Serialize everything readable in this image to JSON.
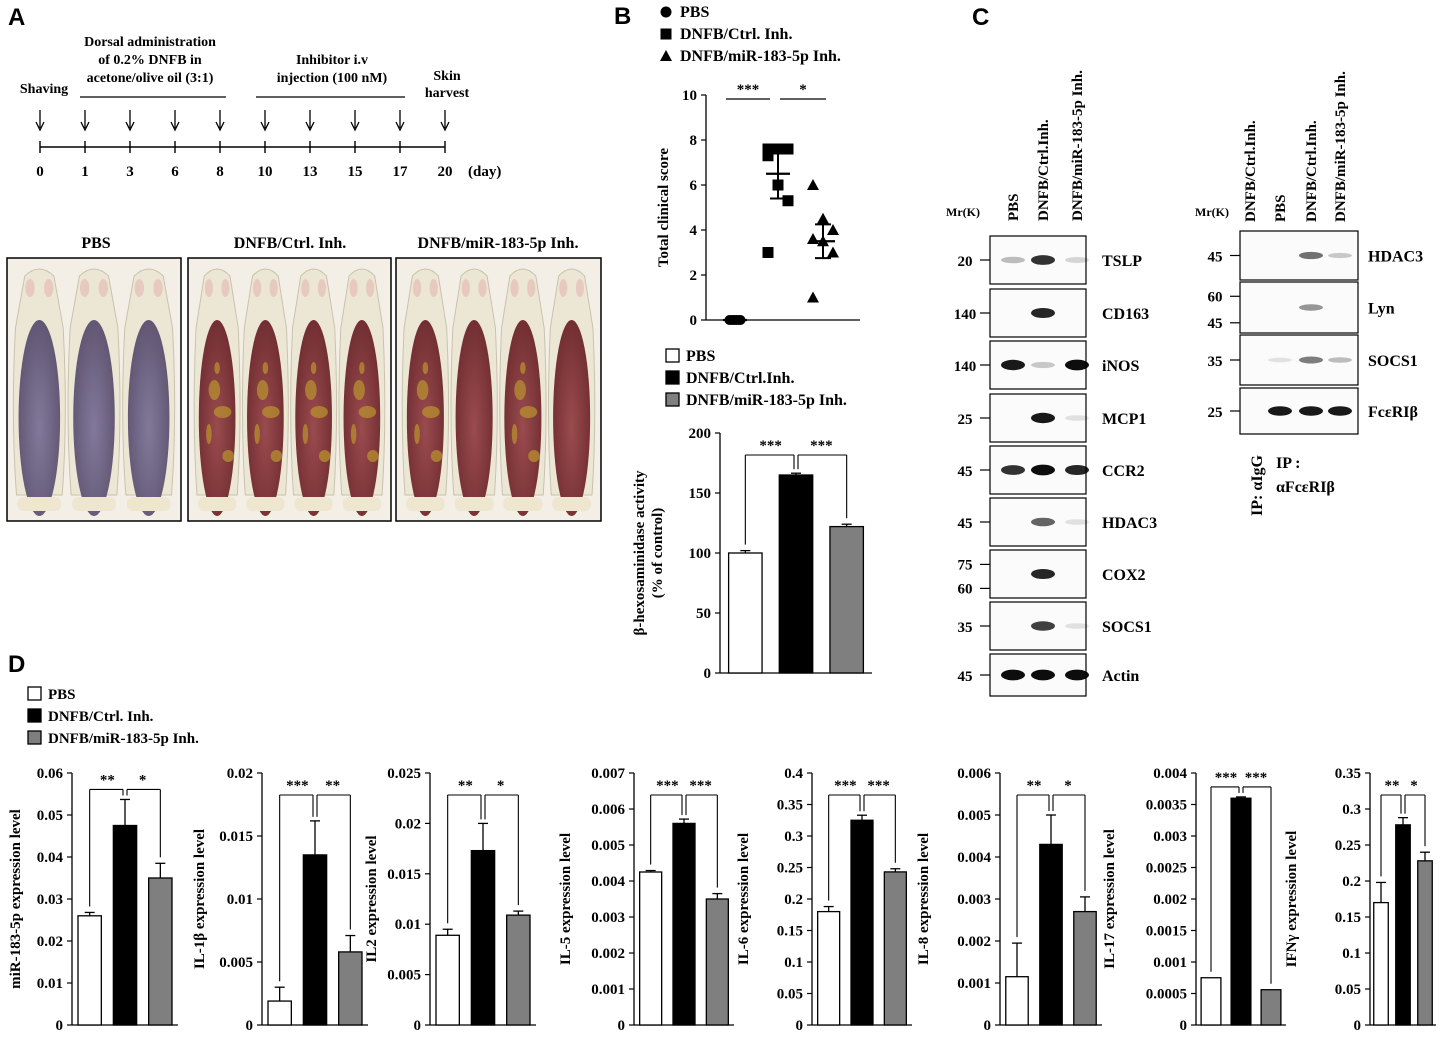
{
  "panel_labels": {
    "a": "A",
    "b": "B",
    "c": "C",
    "d": "D"
  },
  "panel_a": {
    "events": [
      {
        "label": "Shaving"
      },
      {
        "label": "Dorsal administration"
      },
      {
        "label": "of 0.2% DNFB in"
      },
      {
        "label": "acetone/olive oil (3:1)"
      },
      {
        "label": "Inhibitor i.v"
      },
      {
        "label": "injection (100 nM)"
      },
      {
        "label": "Skin"
      },
      {
        "label": "harvest"
      }
    ],
    "days": [
      "0",
      "1",
      "3",
      "6",
      "8",
      "10",
      "13",
      "15",
      "17",
      "20"
    ],
    "day_unit": "(day)",
    "photo_titles": [
      "PBS",
      "DNFB/Ctrl. Inh.",
      "DNFB/miR-183-5p Inh."
    ],
    "colors": {
      "pbs_skin": "#6f6580",
      "lesion": "#8a3a3d",
      "fur": "#ece6d4",
      "crust": "#b8902f"
    }
  },
  "legend_b_top": [
    {
      "marker": "circle",
      "label": "PBS"
    },
    {
      "marker": "square",
      "label": "DNFB/Ctrl. Inh."
    },
    {
      "marker": "triangle",
      "label": "DNFB/miR-183-5p Inh."
    }
  ],
  "legend_bars": [
    {
      "fill": "#ffffff",
      "label": "PBS"
    },
    {
      "fill": "#000000",
      "label": "DNFB/Ctrl.Inh."
    },
    {
      "fill": "#7f7f7f",
      "label": "DNFB/miR-183-5p Inh."
    }
  ],
  "legend_d": [
    {
      "fill": "#ffffff",
      "label": "PBS"
    },
    {
      "fill": "#000000",
      "label": "DNFB/Ctrl. Inh."
    },
    {
      "fill": "#7f7f7f",
      "label": "DNFB/miR-183-5p Inh."
    }
  ],
  "panel_c": {
    "mr_label": "Mr(K)",
    "lanes_left": [
      "PBS",
      "DNFB/Ctrl.Inh.",
      "DNFB/miR-183-5p Inh."
    ],
    "blots_left": [
      {
        "name": "TSLP",
        "mw": [
          "20"
        ],
        "intensity": [
          0.25,
          0.8,
          0.15
        ]
      },
      {
        "name": "CD163",
        "mw": [
          "140"
        ],
        "intensity": [
          0,
          0.85,
          0
        ]
      },
      {
        "name": "iNOS",
        "mw": [
          "140"
        ],
        "intensity": [
          0.9,
          0.2,
          0.95
        ]
      },
      {
        "name": "MCP1",
        "mw": [
          "25"
        ],
        "intensity": [
          0,
          0.9,
          0.1
        ]
      },
      {
        "name": "CCR2",
        "mw": [
          "45"
        ],
        "intensity": [
          0.8,
          0.95,
          0.85
        ]
      },
      {
        "name": "HDAC3",
        "mw": [
          "45"
        ],
        "intensity": [
          0,
          0.6,
          0.1
        ]
      },
      {
        "name": "COX2",
        "mw": [
          "75",
          "60"
        ],
        "intensity": [
          0,
          0.85,
          0
        ]
      },
      {
        "name": "SOCS1",
        "mw": [
          "35"
        ],
        "intensity": [
          0,
          0.75,
          0.1
        ]
      },
      {
        "name": "Actin",
        "mw": [
          "45"
        ],
        "intensity": [
          0.95,
          0.95,
          0.95
        ]
      }
    ],
    "lanes_right": [
      "DNFB/Ctrl.Inh.",
      "PBS",
      "DNFB/Ctrl.Inh.",
      "DNFB/miR-183-5p Inh."
    ],
    "blots_right": [
      {
        "name": "HDAC3",
        "mw": [
          "45"
        ],
        "intensity": [
          0,
          0,
          0.55,
          0.2
        ]
      },
      {
        "name": "Lyn",
        "mw": [
          "60",
          "45"
        ],
        "intensity": [
          0,
          0,
          0.4,
          0
        ]
      },
      {
        "name": "SOCS1",
        "mw": [
          "35"
        ],
        "intensity": [
          0,
          0.1,
          0.5,
          0.25
        ]
      },
      {
        "name": "FcεRIβ",
        "mw": [
          "25"
        ],
        "intensity": [
          0,
          0.9,
          0.9,
          0.9
        ]
      }
    ],
    "ip_igg": "IP: αIgG",
    "ip_fc_1": "IP :",
    "ip_fc_2": "αFcεRIβ"
  },
  "chart_data": [
    {
      "id": "B-scatter",
      "type": "scatter",
      "title": "",
      "xlabel": "",
      "ylabel": "Total clinical score",
      "ylim": [
        0,
        10
      ],
      "yticks": [
        0,
        2,
        4,
        6,
        8,
        10
      ],
      "series": [
        {
          "name": "PBS",
          "marker": "circle",
          "values": [
            0,
            0,
            0,
            0,
            0,
            0
          ],
          "mean": 0,
          "sem": 0
        },
        {
          "name": "DNFB/Ctrl. Inh.",
          "marker": "square",
          "values": [
            7.6,
            7.6,
            7.6,
            7.3,
            6.0,
            5.3,
            3.0
          ],
          "mean": 6.5,
          "sem": 1.1
        },
        {
          "name": "DNFB/miR-183-5p Inh.",
          "marker": "triangle",
          "values": [
            6.0,
            4.5,
            4.0,
            3.6,
            3.5,
            3.0,
            1.0
          ],
          "mean": 3.5,
          "sem": 0.75
        }
      ],
      "significance": [
        "***",
        "*"
      ]
    },
    {
      "id": "B-bar",
      "type": "bar",
      "xlabel": "",
      "ylabel_lines": [
        "β-hexosaminidase activity",
        "(% of control)"
      ],
      "ylim": [
        0,
        200
      ],
      "yticks": [
        0,
        50,
        100,
        150,
        200
      ],
      "values": [
        100,
        165,
        122
      ],
      "errors": [
        2,
        1.5,
        2
      ],
      "significance": [
        "***",
        "***"
      ]
    },
    {
      "id": "D1",
      "type": "bar",
      "ylabel": "miR-183-5p expression level",
      "ylim": [
        0,
        0.06
      ],
      "yticks": [
        "0",
        "0.01",
        "0.02",
        "0.03",
        "0.04",
        "0.05",
        "0.06"
      ],
      "values": [
        0.026,
        0.0475,
        0.035
      ],
      "errors": [
        0.0008,
        0.0062,
        0.0035
      ],
      "significance": [
        "**",
        "*"
      ]
    },
    {
      "id": "D2",
      "type": "bar",
      "ylabel": "IL-1β expression level",
      "ylim": [
        0,
        0.02
      ],
      "yticks": [
        "0",
        "0.005",
        "0.01",
        "0.015",
        "0.02"
      ],
      "values": [
        0.0019,
        0.0135,
        0.0058
      ],
      "errors": [
        0.0011,
        0.0027,
        0.0013
      ],
      "significance": [
        "***",
        "**"
      ]
    },
    {
      "id": "D3",
      "type": "bar",
      "ylabel": "IL2 expression level",
      "ylim": [
        0,
        0.025
      ],
      "yticks": [
        "0",
        "0.005",
        "0.01",
        "0.015",
        "0.02",
        "0.025"
      ],
      "values": [
        0.0089,
        0.0173,
        0.0109
      ],
      "errors": [
        0.0006,
        0.0027,
        0.0004
      ],
      "significance": [
        "**",
        "*"
      ]
    },
    {
      "id": "D4",
      "type": "bar",
      "ylabel": "IL-5 expression level",
      "ylim": [
        0,
        0.007
      ],
      "yticks": [
        "0",
        "0.001",
        "0.002",
        "0.003",
        "0.004",
        "0.005",
        "0.006",
        "0.007"
      ],
      "values": [
        0.00425,
        0.0056,
        0.0035
      ],
      "errors": [
        4e-05,
        0.00012,
        0.00015
      ],
      "significance": [
        "***",
        "***"
      ]
    },
    {
      "id": "D5",
      "type": "bar",
      "ylabel": "IL-6 expression level",
      "ylim": [
        0,
        0.4
      ],
      "yticks": [
        "0",
        "0.05",
        "0.1",
        "0.15",
        "0.2",
        "0.25",
        "0.3",
        "0.35",
        "0.4"
      ],
      "values": [
        0.18,
        0.325,
        0.243
      ],
      "errors": [
        0.008,
        0.008,
        0.005
      ],
      "significance": [
        "***",
        "***"
      ]
    },
    {
      "id": "D6",
      "type": "bar",
      "ylabel": "IL-8 expression level",
      "ylim": [
        0,
        0.006
      ],
      "yticks": [
        "0",
        "0.001",
        "0.002",
        "0.003",
        "0.004",
        "0.005",
        "0.006"
      ],
      "values": [
        0.00115,
        0.0043,
        0.0027
      ],
      "errors": [
        0.0008,
        0.0007,
        0.00035
      ],
      "significance": [
        "**",
        "*"
      ]
    },
    {
      "id": "D7",
      "type": "bar",
      "ylabel": "IL-17 expression level",
      "ylim": [
        0,
        0.004
      ],
      "yticks": [
        "0",
        "0.0005",
        "0.001",
        "0.0015",
        "0.002",
        "0.0025",
        "0.003",
        "0.0035",
        "0.004"
      ],
      "values": [
        0.00075,
        0.0036,
        0.00056
      ],
      "errors": [
        0,
        2e-05,
        0
      ],
      "significance": [
        "***",
        "***"
      ]
    },
    {
      "id": "D8",
      "type": "bar",
      "ylabel": "IFNγ expression level",
      "ylim": [
        0,
        0.35
      ],
      "yticks": [
        "0",
        "0.05",
        "0.1",
        "0.15",
        "0.2",
        "0.25",
        "0.3",
        "0.35"
      ],
      "values": [
        0.17,
        0.278,
        0.228
      ],
      "errors": [
        0.028,
        0.01,
        0.012
      ],
      "significance": [
        "**",
        "*"
      ]
    }
  ]
}
